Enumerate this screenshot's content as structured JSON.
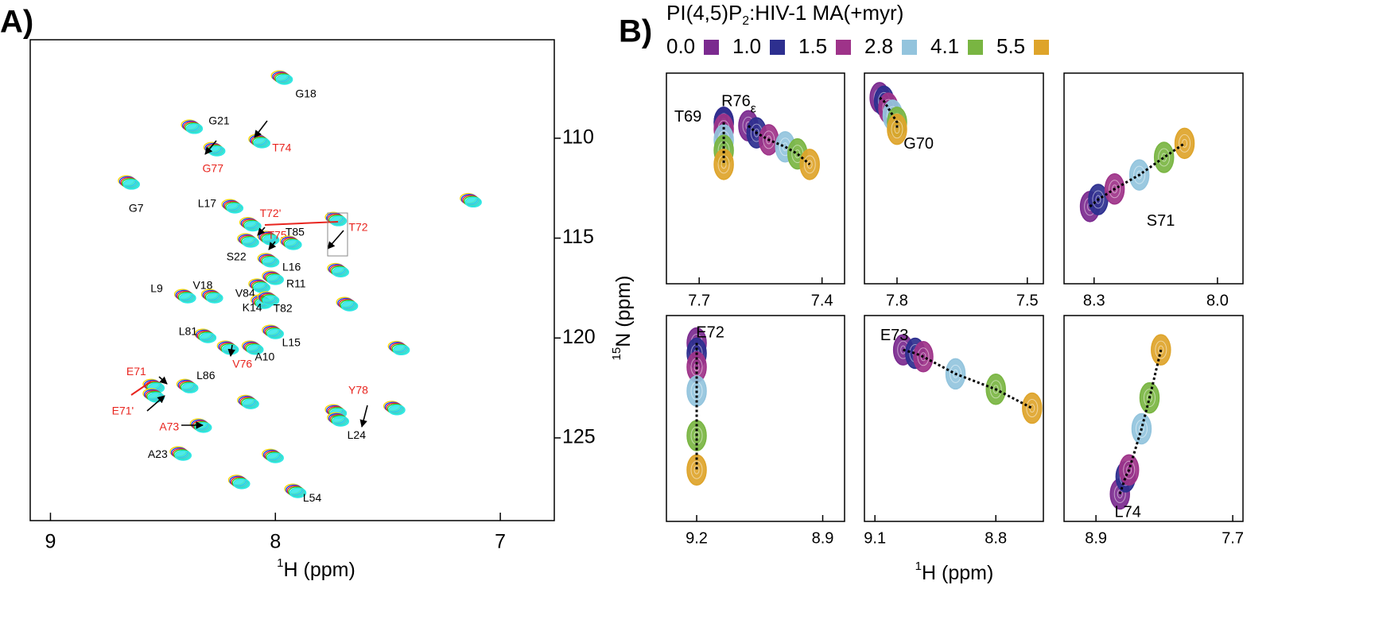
{
  "chart_data": [
    {
      "type": "scatter",
      "panel_label": "A)",
      "x_label": {
        "sup": "1",
        "text": "H (ppm)"
      },
      "y_label": {
        "sup": "15",
        "text": "N (ppm)"
      },
      "xlim": [
        9.09,
        6.76
      ],
      "ylim": [
        105.07,
        129.14
      ],
      "xticks": [
        9,
        8,
        7
      ],
      "yticks": [
        110,
        115,
        120,
        125
      ],
      "contour_colors": [
        "#ffd700",
        "#1f3dff",
        "#ff2020",
        "#22cc22",
        "#2ee6e6"
      ],
      "peaks": [
        {
          "label": "G18",
          "x": 7.96,
          "y": 107.06
        },
        {
          "label": "G21",
          "x": 8.36,
          "y": 109.52
        },
        {
          "label": "T74",
          "x": 8.06,
          "y": 110.24,
          "label_color": "#e8251f"
        },
        {
          "label": "G77",
          "x": 8.26,
          "y": 110.64,
          "label_color": "#e8251f"
        },
        {
          "label": "G7",
          "x": 8.64,
          "y": 112.31
        },
        {
          "label": "L17",
          "x": 8.18,
          "y": 113.5
        },
        {
          "label": "T72'",
          "x": 8.1,
          "y": 114.4,
          "label_color": "#e8251f"
        },
        {
          "label": "T72",
          "x": 7.72,
          "y": 114.14,
          "label_color": "#e8251f"
        },
        {
          "label": "T75",
          "x": 8.02,
          "y": 115.09,
          "label_color": "#e8251f"
        },
        {
          "label": "T85",
          "x": 7.92,
          "y": 115.33
        },
        {
          "label": "S22",
          "x": 8.11,
          "y": 115.21
        },
        {
          "label": "L16",
          "x": 8.02,
          "y": 116.2
        },
        {
          "label": "R11",
          "x": 8.0,
          "y": 117.08
        },
        {
          "label": "V84",
          "x": 8.06,
          "y": 117.48
        },
        {
          "label": "L9",
          "x": 8.39,
          "y": 118.0
        },
        {
          "label": "V18",
          "x": 8.27,
          "y": 118.0
        },
        {
          "label": "K14",
          "x": 8.05,
          "y": 118.28
        },
        {
          "label": "T82",
          "x": 8.02,
          "y": 118.12
        },
        {
          "label": "L81",
          "x": 8.3,
          "y": 119.99
        },
        {
          "label": "L15",
          "x": 8.0,
          "y": 119.79
        },
        {
          "label": "A10",
          "x": 8.09,
          "y": 120.58
        },
        {
          "label": "V76",
          "x": 8.2,
          "y": 120.58,
          "label_color": "#e8251f"
        },
        {
          "label": "L86",
          "x": 8.38,
          "y": 122.5
        },
        {
          "label": "E71",
          "x": 8.53,
          "y": 122.5,
          "label_color": "#e8251f"
        },
        {
          "label": "E71'",
          "x": 8.53,
          "y": 122.97,
          "label_color": "#e8251f"
        },
        {
          "label": "Y78",
          "x": 7.72,
          "y": 123.77,
          "label_color": "#e8251f"
        },
        {
          "label": "L24",
          "x": 7.71,
          "y": 124.17
        },
        {
          "label": "A73",
          "x": 8.32,
          "y": 124.48,
          "label_color": "#e8251f"
        },
        {
          "label": "A23",
          "x": 8.41,
          "y": 125.88
        },
        {
          "label": "L54",
          "x": 7.9,
          "y": 127.75
        },
        {
          "label": null,
          "x": 7.12,
          "y": 113.2
        },
        {
          "label": null,
          "x": 7.44,
          "y": 120.6
        },
        {
          "label": null,
          "x": 7.67,
          "y": 118.4
        },
        {
          "label": null,
          "x": 8.11,
          "y": 123.3
        },
        {
          "label": null,
          "x": 8.15,
          "y": 127.3
        },
        {
          "label": null,
          "x": 7.71,
          "y": 116.7
        },
        {
          "label": null,
          "x": 7.46,
          "y": 123.6
        },
        {
          "label": null,
          "x": 8.0,
          "y": 126.0
        }
      ]
    },
    {
      "type": "titration",
      "panel_label": "B)",
      "legend_title": {
        "text": "PI(4,5)P",
        "sub": "2",
        "rest": ":HIV-1 MA(+myr)"
      },
      "series": [
        {
          "name": "0.0",
          "color": "#7b2a8f"
        },
        {
          "name": "1.0",
          "color": "#2d2f8f"
        },
        {
          "name": "1.5",
          "color": "#9e3389"
        },
        {
          "name": "2.8",
          "color": "#93c4dd"
        },
        {
          "name": "4.1",
          "color": "#79b542"
        },
        {
          "name": "5.5",
          "color": "#dea42a"
        }
      ],
      "x_label": {
        "sup": "1",
        "text": "H (ppm)"
      },
      "panels": [
        {
          "xlim": [
            7.78,
            7.345
          ],
          "ylim": [
            110,
            116
          ],
          "xticks": [
            7.7,
            7.4
          ],
          "trajectories": [
            {
              "label": "T69",
              "x": [
                7.64,
                7.64,
                7.64,
                7.64,
                7.64,
                7.64
              ],
              "y": [
                111.4,
                111.4,
                111.6,
                111.9,
                112.2,
                112.6
              ]
            },
            {
              "label": "R76",
              "label_sub": "ε",
              "x": [
                7.58,
                7.56,
                7.53,
                7.49,
                7.46,
                7.43
              ],
              "y": [
                111.5,
                111.7,
                111.9,
                112.1,
                112.3,
                112.6
              ]
            }
          ]
        },
        {
          "xlim": [
            7.875,
            7.463
          ],
          "ylim": [
            106,
            112
          ],
          "xticks": [
            7.8,
            7.5
          ],
          "trajectories": [
            {
              "label": "G70",
              "x": [
                7.84,
                7.83,
                7.82,
                7.81,
                7.8,
                7.8
              ],
              "y": [
                106.7,
                106.8,
                107.0,
                107.2,
                107.4,
                107.6
              ]
            }
          ]
        },
        {
          "xlim": [
            8.373,
            7.938
          ],
          "ylim": [
            113,
            119
          ],
          "xticks": [
            8.3,
            {
              "value": 8,
              "label": "8.0"
            }
          ],
          "trajectories": [
            {
              "label": "S71",
              "x": [
                8.31,
                8.29,
                8.25,
                8.19,
                8.13,
                8.08
              ],
              "y": [
                116.8,
                116.6,
                116.3,
                115.9,
                115.4,
                115.0
              ]
            }
          ]
        },
        {
          "xlim": [
            9.272,
            8.848
          ],
          "ylim": [
            120,
            126
          ],
          "xticks": [
            9.2,
            8.9
          ],
          "trajectories": [
            {
              "label": "E72",
              "x": [
                9.2,
                9.2,
                9.2,
                9.2,
                9.2,
                9.2
              ],
              "y": [
                120.8,
                121.1,
                121.5,
                122.2,
                123.5,
                124.5
              ]
            }
          ]
        },
        {
          "xlim": [
            9.126,
            8.682
          ],
          "ylim": [
            118,
            124
          ],
          "xticks": [
            9.1,
            8.8
          ],
          "trajectories": [
            {
              "label": "E73",
              "x": [
                9.03,
                9.0,
                8.98,
                8.9,
                8.8,
                8.71
              ],
              "y": [
                119.0,
                119.1,
                119.2,
                119.7,
                120.15,
                120.7
              ]
            }
          ]
        },
        {
          "xlim": [
            9.18,
            7.61
          ],
          "ylim": [
            118,
            124
          ],
          "xticks": [
            8.9,
            7.7
          ],
          "trajectories": [
            {
              "label": "L74",
              "x": [
                8.69,
                8.64,
                8.61,
                8.5,
                8.43,
                8.33
              ],
              "y": [
                123.2,
                122.7,
                122.5,
                121.3,
                120.4,
                119.0
              ]
            }
          ]
        }
      ]
    }
  ]
}
